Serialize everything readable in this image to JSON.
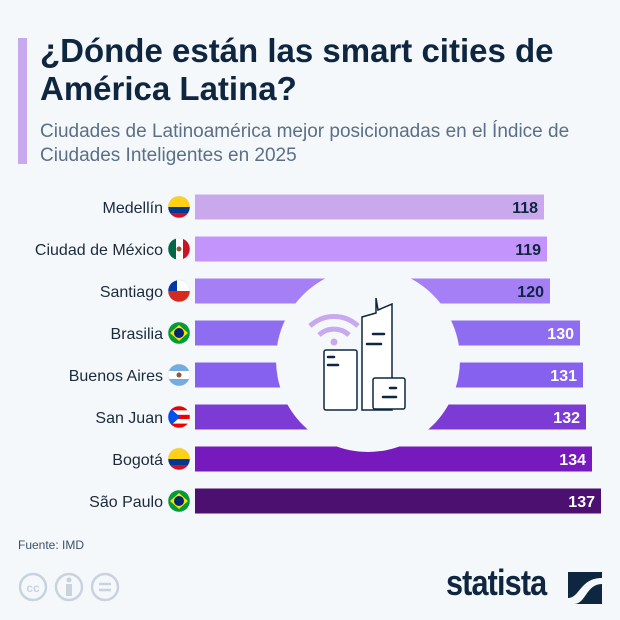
{
  "title": "¿Dónde están las smart cities de América Latina?",
  "subtitle": "Ciudades de Latinoamérica mejor posicionadas en el Índice de Ciudades Inteligentes en 2025",
  "source": "Fuente: IMD",
  "brand": "statista",
  "chart_data": {
    "type": "bar",
    "orientation": "horizontal",
    "title": "",
    "xlabel": "",
    "ylabel": "",
    "categories": [
      "Medellín",
      "Ciudad de México",
      "Santiago",
      "Brasilia",
      "Buenos Aires",
      "San Juan",
      "Bogotá",
      "São Paulo"
    ],
    "flags": [
      "colombia",
      "mexico",
      "chile",
      "brazil",
      "argentina",
      "puerto-rico",
      "colombia",
      "brazil"
    ],
    "values": [
      118,
      119,
      120,
      130,
      131,
      132,
      134,
      137
    ],
    "colors": [
      "#c9a8ec",
      "#c394fc",
      "#a57ff5",
      "#8f6df0",
      "#8660ee",
      "#7c3bd4",
      "#7619bd",
      "#4c1170"
    ],
    "grid": false
  }
}
